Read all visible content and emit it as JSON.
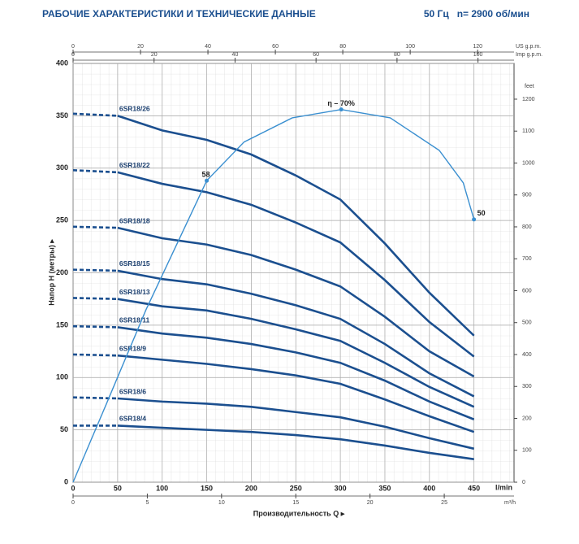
{
  "chart_data": {
    "type": "line",
    "title": "РАБОЧИЕ ХАРАКТЕРИСТИКИ И ТЕХНИЧЕСКИЕ ДАННЫЕ",
    "subtitle": "50 Гц   n= 2900 об/мин",
    "y_label": "Напор H (метры) ▸",
    "x_label": "Производительность Q ▸",
    "x_unit": "l/min",
    "x": [
      0,
      50,
      100,
      150,
      200,
      250,
      300,
      350,
      400,
      450
    ],
    "xlim": [
      0,
      495
    ],
    "xticks": [
      0,
      50,
      100,
      150,
      200,
      250,
      300,
      350,
      400,
      450
    ],
    "ylim": [
      0,
      400
    ],
    "yticks": [
      0,
      50,
      100,
      150,
      200,
      250,
      300,
      350,
      400
    ],
    "grid": true,
    "series": [
      {
        "name": "6SR18/26",
        "color": "#1b4f8f",
        "values": [
          352,
          350,
          336,
          327,
          313,
          293,
          270,
          228,
          181,
          140
        ]
      },
      {
        "name": "6SR18/22",
        "color": "#1b4f8f",
        "values": [
          298,
          296,
          285,
          277,
          265,
          248,
          229,
          193,
          153,
          120
        ]
      },
      {
        "name": "6SR18/18",
        "color": "#1b4f8f",
        "values": [
          244,
          243,
          233,
          227,
          217,
          203,
          187,
          158,
          125,
          101
        ]
      },
      {
        "name": "6SR18/15",
        "color": "#1b4f8f",
        "values": [
          203,
          202,
          194,
          189,
          180,
          169,
          156,
          132,
          104,
          82
        ]
      },
      {
        "name": "6SR18/13",
        "color": "#1b4f8f",
        "values": [
          176,
          175,
          168,
          164,
          156,
          146,
          135,
          114,
          91,
          72
        ]
      },
      {
        "name": "6SR18/11",
        "color": "#1b4f8f",
        "values": [
          149,
          148,
          142,
          138,
          132,
          124,
          114,
          97,
          77,
          60
        ]
      },
      {
        "name": "6SR18/9",
        "color": "#1b4f8f",
        "values": [
          122,
          121,
          117,
          113,
          108,
          102,
          94,
          79,
          63,
          48
        ]
      },
      {
        "name": "6SR18/6",
        "color": "#1b4f8f",
        "values": [
          81,
          80,
          77,
          75,
          72,
          67,
          62,
          53,
          42,
          32
        ]
      },
      {
        "name": "6SR18/4",
        "color": "#1b4f8f",
        "values": [
          54,
          54,
          52,
          50,
          48,
          45,
          41,
          35,
          28,
          22
        ]
      }
    ],
    "y2_unit": "feet",
    "y2lim": [
      0,
      1312
    ],
    "y2ticks": [
      0,
      100,
      200,
      300,
      400,
      500,
      600,
      700,
      800,
      900,
      1000,
      1100,
      1200
    ],
    "secondary_x": [
      {
        "unit": "US g.p.m.",
        "xlim": [
          0,
          130.8
        ],
        "xticks": [
          0,
          20,
          40,
          60,
          80,
          100,
          120
        ],
        "position": "top"
      },
      {
        "unit": "Imp g.p.m.",
        "xlim": [
          0,
          108.9
        ],
        "xticks": [
          0,
          20,
          40,
          60,
          80,
          100
        ],
        "position": "top"
      },
      {
        "unit": "m³/h",
        "xlim": [
          0,
          29.7
        ],
        "xticks": [
          0,
          5,
          10,
          15,
          20,
          25
        ],
        "position": "bottom"
      }
    ],
    "efficiency": {
      "color": "#3a8fd0",
      "x": [
        0,
        36,
        82,
        150,
        192,
        246,
        301,
        356,
        411,
        438,
        450
      ],
      "values": [
        0,
        72,
        165,
        288,
        325,
        348,
        356,
        348,
        317,
        286,
        251
      ],
      "annotations": [
        {
          "x": 150,
          "y": 288,
          "text": "58"
        },
        {
          "x": 301,
          "y": 356,
          "text": "η – 70%"
        },
        {
          "x": 450,
          "y": 251,
          "text": "50"
        }
      ]
    }
  }
}
